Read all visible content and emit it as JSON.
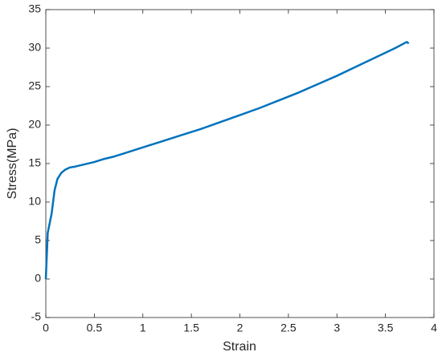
{
  "chart_data": {
    "type": "line",
    "x_label": "Strain",
    "y_label": "Stress(MPa)",
    "x": [
      0,
      0.02,
      0.06,
      0.09,
      0.12,
      0.16,
      0.2,
      0.25,
      0.3,
      0.4,
      0.5,
      0.6,
      0.7,
      0.8,
      0.9,
      1.0,
      1.2,
      1.4,
      1.6,
      1.8,
      2.0,
      2.2,
      2.4,
      2.6,
      2.8,
      3.0,
      3.2,
      3.4,
      3.6,
      3.72,
      3.74
    ],
    "series": [
      {
        "color": "#0072bd",
        "values": [
          0,
          6,
          8.5,
          11.5,
          13,
          13.8,
          14.2,
          14.5,
          14.6,
          14.9,
          15.2,
          15.6,
          15.9,
          16.3,
          16.7,
          17.1,
          17.9,
          18.7,
          19.5,
          20.4,
          21.3,
          22.2,
          23.2,
          24.2,
          25.3,
          26.4,
          27.6,
          28.8,
          30.0,
          30.8,
          30.6
        ]
      }
    ],
    "xlim": [
      0,
      4
    ],
    "xticks": [
      0,
      0.5,
      1,
      1.5,
      2,
      2.5,
      3,
      3.5,
      4
    ],
    "ylim": [
      -5,
      35
    ],
    "yticks": [
      -5,
      0,
      5,
      10,
      15,
      20,
      25,
      30,
      35
    ],
    "grid": false
  }
}
